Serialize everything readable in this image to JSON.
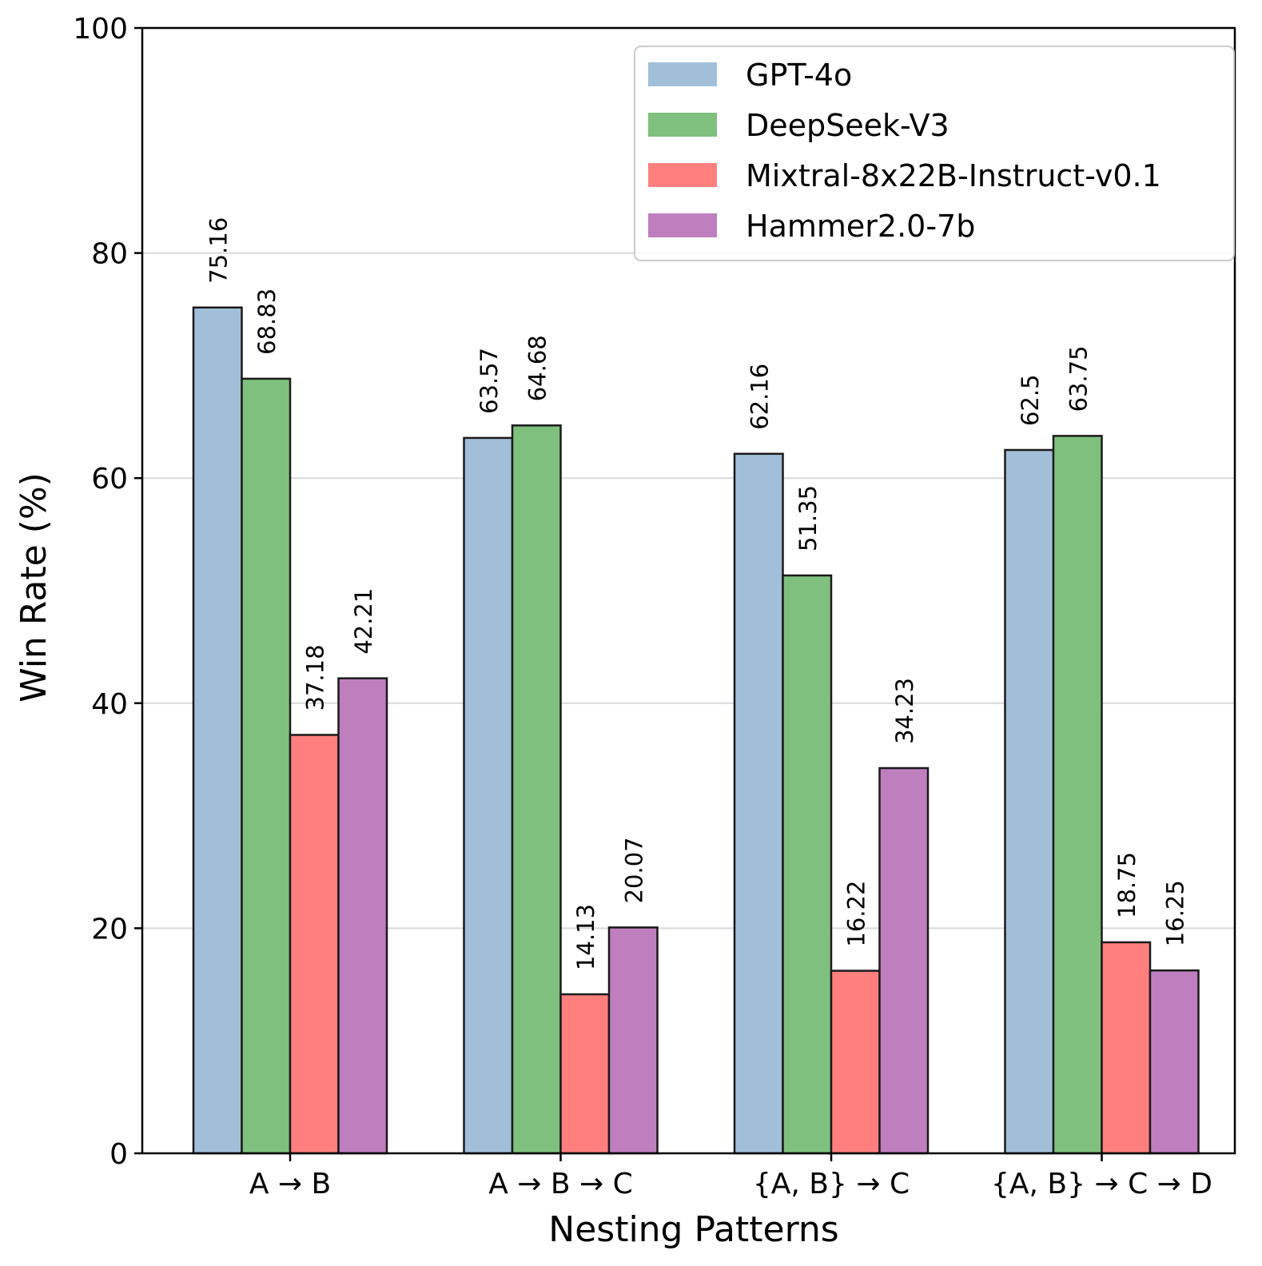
{
  "chart_data": {
    "type": "bar",
    "title": "",
    "xlabel": "Nesting Patterns",
    "ylabel": "Win Rate (%)",
    "ylim": [
      0,
      100
    ],
    "yticks": [
      0,
      20,
      40,
      60,
      80,
      100
    ],
    "grid": "horizontal",
    "legend_position": "top-right",
    "categories": [
      "A → B",
      "A → B → C",
      "{A, B} → C",
      "{A, B} → C → D"
    ],
    "series": [
      {
        "name": "GPT-4o",
        "color": "#a2bfd9",
        "values": [
          75.16,
          63.57,
          62.16,
          62.5
        ],
        "labels": [
          "75.16",
          "63.57",
          "62.16",
          "62.5"
        ]
      },
      {
        "name": "DeepSeek-V3",
        "color": "#7fc07f",
        "values": [
          68.83,
          64.68,
          51.35,
          63.75
        ],
        "labels": [
          "68.83",
          "64.68",
          "51.35",
          "63.75"
        ]
      },
      {
        "name": "Mixtral-8x22B-Instruct-v0.1",
        "color": "#ff7f7f",
        "values": [
          37.18,
          14.13,
          16.22,
          18.75
        ],
        "labels": [
          "37.18",
          "14.13",
          "16.22",
          "18.75"
        ]
      },
      {
        "name": "Hammer2.0-7b",
        "color": "#bf7fbf",
        "values": [
          42.21,
          20.07,
          34.23,
          16.25
        ],
        "labels": [
          "42.21",
          "20.07",
          "34.23",
          "16.25"
        ]
      }
    ]
  }
}
